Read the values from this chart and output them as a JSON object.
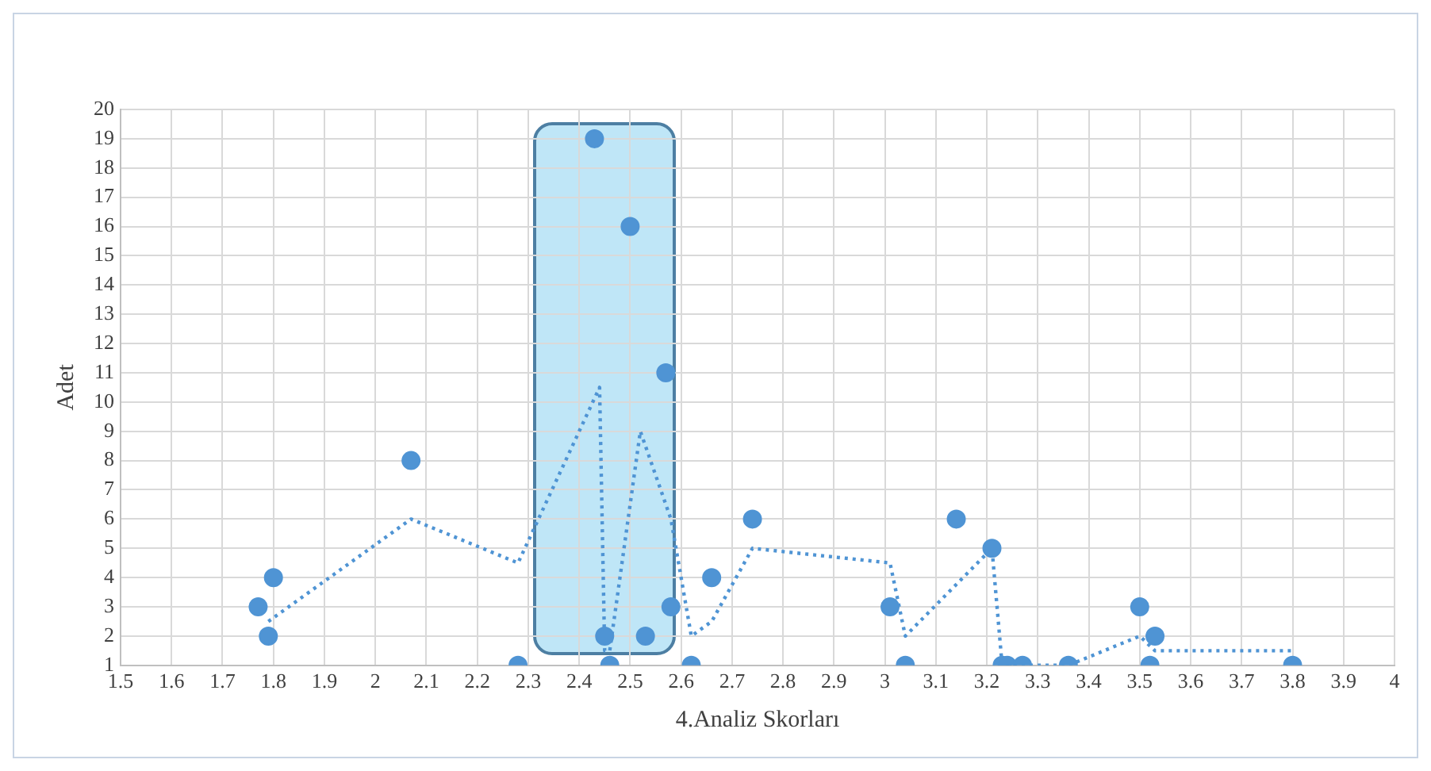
{
  "chart_data": {
    "type": "scatter",
    "xlabel": "4.Analiz Skorları",
    "ylabel": "Adet",
    "xlim": [
      1.5,
      4
    ],
    "xticks": [
      1.5,
      1.6,
      1.7,
      1.8,
      1.9,
      2,
      2.1,
      2.2,
      2.3,
      2.4,
      2.5,
      2.6,
      2.7,
      2.8,
      2.9,
      3,
      3.1,
      3.2,
      3.3,
      3.4,
      3.5,
      3.6,
      3.7,
      3.8,
      3.9,
      4
    ],
    "ylim": [
      1,
      20
    ],
    "yticks": [
      1,
      2,
      3,
      4,
      5,
      6,
      7,
      8,
      9,
      10,
      11,
      12,
      13,
      14,
      15,
      16,
      17,
      18,
      19,
      20
    ],
    "grid": true,
    "legend": false,
    "marker": "circle",
    "series": [
      {
        "type": "scatter",
        "color": "#4f94d4",
        "x": [
          1.77,
          1.8,
          1.79,
          2.07,
          2.28,
          2.43,
          2.45,
          2.46,
          2.5,
          2.53,
          2.57,
          2.58,
          2.62,
          2.66,
          2.74,
          3.01,
          3.04,
          3.14,
          3.21,
          3.23,
          3.24,
          3.27,
          3.36,
          3.5,
          3.53,
          3.52,
          3.8
        ],
        "values": [
          3,
          4,
          2,
          8,
          1,
          19,
          2,
          1,
          16,
          2,
          11,
          3,
          1,
          4,
          6,
          3,
          1,
          6,
          5,
          1,
          1,
          1,
          1,
          3,
          2,
          1,
          1
        ]
      },
      {
        "type": "line",
        "color": "#4f94d4",
        "line_style": "dotted",
        "marker": "none",
        "x": [
          1.79,
          2.07,
          2.28,
          2.44,
          2.45,
          2.46,
          2.52,
          2.57,
          2.58,
          2.62,
          2.66,
          2.74,
          3.01,
          3.04,
          3.21,
          3.23,
          3.36,
          3.5,
          3.53,
          3.8
        ],
        "values": [
          2.5,
          6,
          4.5,
          10.5,
          1.5,
          1.5,
          9,
          6.5,
          6,
          2,
          2.5,
          5,
          4.5,
          2,
          5,
          1,
          1,
          2,
          1.5,
          1.5
        ]
      }
    ]
  }
}
